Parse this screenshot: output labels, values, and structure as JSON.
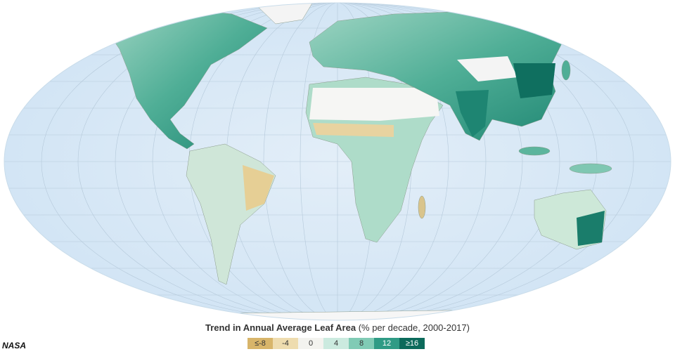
{
  "legend": {
    "title": "Trend in Annual Average Leaf Area",
    "subtitle": "(% per decade, 2000-2017)",
    "items": [
      {
        "label": "≤-8",
        "color": "#d8b56a"
      },
      {
        "label": "-4",
        "color": "#eedcaf"
      },
      {
        "label": "0",
        "color": "#f3f3ef"
      },
      {
        "label": "4",
        "color": "#cbeadf"
      },
      {
        "label": "8",
        "color": "#80cbb5"
      },
      {
        "label": "12",
        "color": "#2f9b85"
      },
      {
        "label": "≥16",
        "color": "#0c6a5b"
      }
    ]
  },
  "credit": "NASA"
}
